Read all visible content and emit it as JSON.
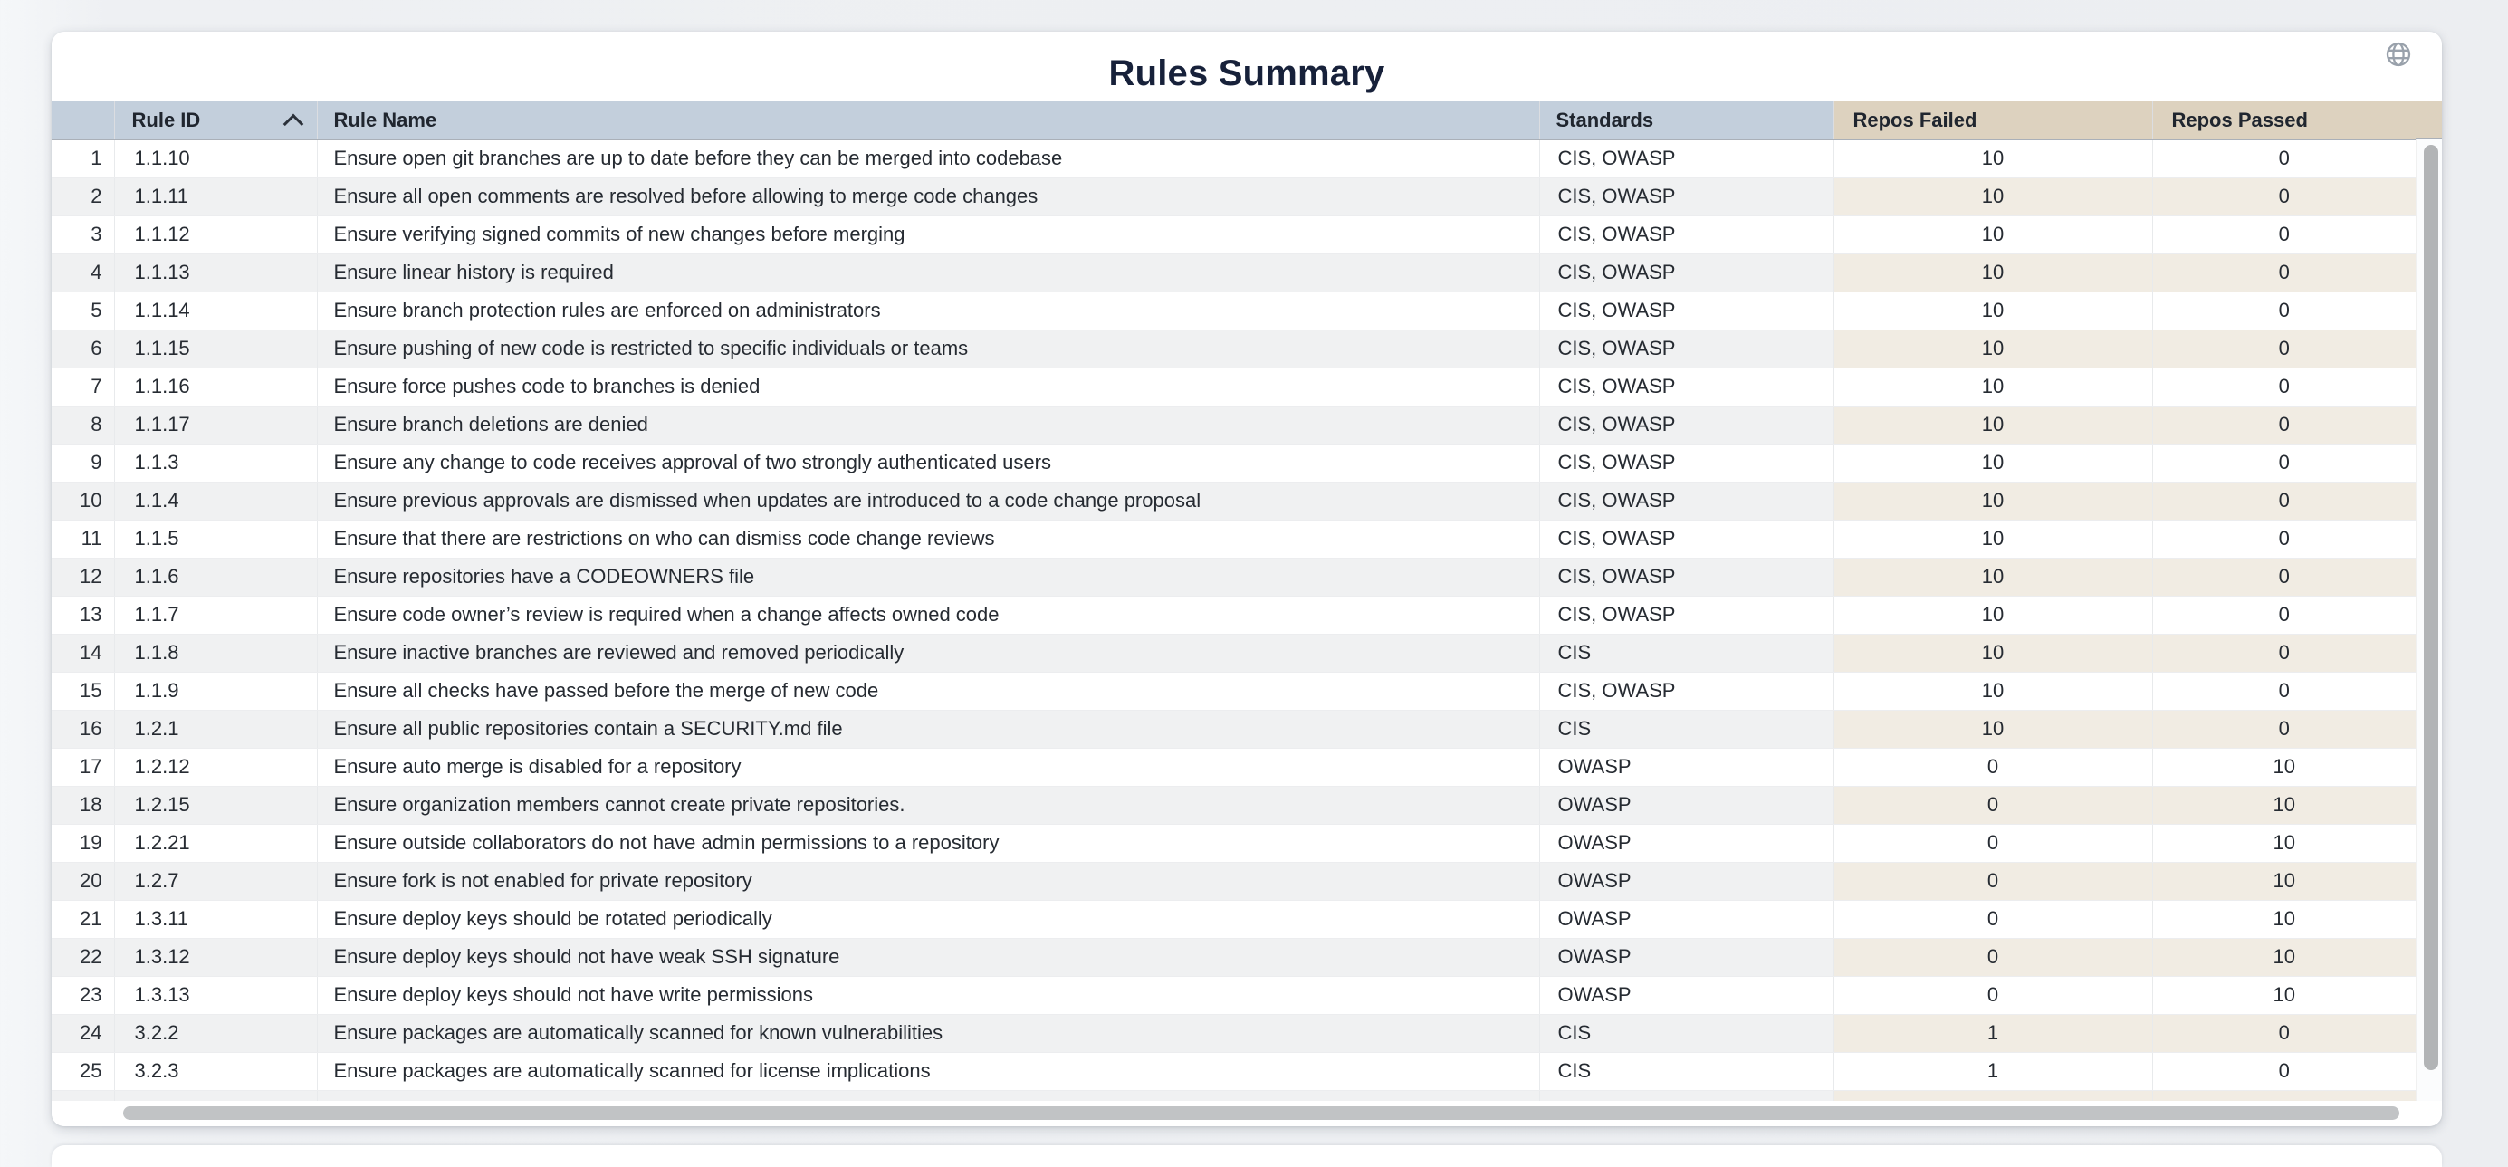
{
  "title": "Rules Summary",
  "header_icon": "globe",
  "colors": {
    "header_blue": "#c3cfdc",
    "header_tan": "#ddd2bf",
    "row_even_gray": "#f0f1f2",
    "row_even_tan": "#f1ece3",
    "title_text": "#17213a"
  },
  "table": {
    "columns": {
      "rule_id": "Rule ID",
      "rule_name": "Rule Name",
      "standards": "Standards",
      "repos_failed": "Repos Failed",
      "repos_passed": "Repos Passed"
    },
    "sort": {
      "column": "Rule ID",
      "direction": "ascending"
    },
    "rows": [
      {
        "num": 1,
        "id": "1.1.10",
        "name": "Ensure open git branches are up to date before they can be merged into codebase",
        "standards": "CIS, OWASP",
        "failed": 10,
        "passed": 0
      },
      {
        "num": 2,
        "id": "1.1.11",
        "name": "Ensure all open comments are resolved before allowing to merge code changes",
        "standards": "CIS, OWASP",
        "failed": 10,
        "passed": 0
      },
      {
        "num": 3,
        "id": "1.1.12",
        "name": "Ensure verifying signed commits of new changes before merging",
        "standards": "CIS, OWASP",
        "failed": 10,
        "passed": 0
      },
      {
        "num": 4,
        "id": "1.1.13",
        "name": "Ensure linear history is required",
        "standards": "CIS, OWASP",
        "failed": 10,
        "passed": 0
      },
      {
        "num": 5,
        "id": "1.1.14",
        "name": "Ensure branch protection rules are enforced on administrators",
        "standards": "CIS, OWASP",
        "failed": 10,
        "passed": 0
      },
      {
        "num": 6,
        "id": "1.1.15",
        "name": "Ensure pushing of new code is restricted to specific individuals or teams",
        "standards": "CIS, OWASP",
        "failed": 10,
        "passed": 0
      },
      {
        "num": 7,
        "id": "1.1.16",
        "name": "Ensure force pushes code to branches is denied",
        "standards": "CIS, OWASP",
        "failed": 10,
        "passed": 0
      },
      {
        "num": 8,
        "id": "1.1.17",
        "name": "Ensure branch deletions are denied",
        "standards": "CIS, OWASP",
        "failed": 10,
        "passed": 0
      },
      {
        "num": 9,
        "id": "1.1.3",
        "name": "Ensure any change to code receives approval of two strongly authenticated users",
        "standards": "CIS, OWASP",
        "failed": 10,
        "passed": 0
      },
      {
        "num": 10,
        "id": "1.1.4",
        "name": "Ensure previous approvals are dismissed when updates are introduced to a code change proposal",
        "standards": "CIS, OWASP",
        "failed": 10,
        "passed": 0
      },
      {
        "num": 11,
        "id": "1.1.5",
        "name": "Ensure that there are restrictions on who can dismiss code change reviews",
        "standards": "CIS, OWASP",
        "failed": 10,
        "passed": 0
      },
      {
        "num": 12,
        "id": "1.1.6",
        "name": "Ensure repositories have a CODEOWNERS file",
        "standards": "CIS, OWASP",
        "failed": 10,
        "passed": 0
      },
      {
        "num": 13,
        "id": "1.1.7",
        "name": "Ensure code owner’s review is required when a change affects owned code",
        "standards": "CIS, OWASP",
        "failed": 10,
        "passed": 0
      },
      {
        "num": 14,
        "id": "1.1.8",
        "name": "Ensure inactive branches are reviewed and removed periodically",
        "standards": "CIS",
        "failed": 10,
        "passed": 0
      },
      {
        "num": 15,
        "id": "1.1.9",
        "name": "Ensure all checks have passed before the merge of new code",
        "standards": "CIS, OWASP",
        "failed": 10,
        "passed": 0
      },
      {
        "num": 16,
        "id": "1.2.1",
        "name": "Ensure all public repositories contain a SECURITY.md file",
        "standards": "CIS",
        "failed": 10,
        "passed": 0
      },
      {
        "num": 17,
        "id": "1.2.12",
        "name": "Ensure auto merge is disabled for a repository",
        "standards": "OWASP",
        "failed": 0,
        "passed": 10
      },
      {
        "num": 18,
        "id": "1.2.15",
        "name": "Ensure organization members cannot create private repositories.",
        "standards": "OWASP",
        "failed": 0,
        "passed": 10
      },
      {
        "num": 19,
        "id": "1.2.21",
        "name": "Ensure outside collaborators do not have admin permissions to a repository",
        "standards": "OWASP",
        "failed": 0,
        "passed": 10
      },
      {
        "num": 20,
        "id": "1.2.7",
        "name": "Ensure fork is not enabled for private repository",
        "standards": "OWASP",
        "failed": 0,
        "passed": 10
      },
      {
        "num": 21,
        "id": "1.3.11",
        "name": "Ensure deploy keys should be rotated periodically",
        "standards": "OWASP",
        "failed": 0,
        "passed": 10
      },
      {
        "num": 22,
        "id": "1.3.12",
        "name": "Ensure deploy keys should not have weak SSH signature",
        "standards": "OWASP",
        "failed": 0,
        "passed": 10
      },
      {
        "num": 23,
        "id": "1.3.13",
        "name": "Ensure deploy keys should not have write permissions",
        "standards": "OWASP",
        "failed": 0,
        "passed": 10
      },
      {
        "num": 24,
        "id": "3.2.2",
        "name": "Ensure packages are automatically scanned for known vulnerabilities",
        "standards": "CIS",
        "failed": 1,
        "passed": 0
      },
      {
        "num": 25,
        "id": "3.2.3",
        "name": "Ensure packages are automatically scanned for license implications",
        "standards": "CIS",
        "failed": 1,
        "passed": 0
      }
    ]
  }
}
